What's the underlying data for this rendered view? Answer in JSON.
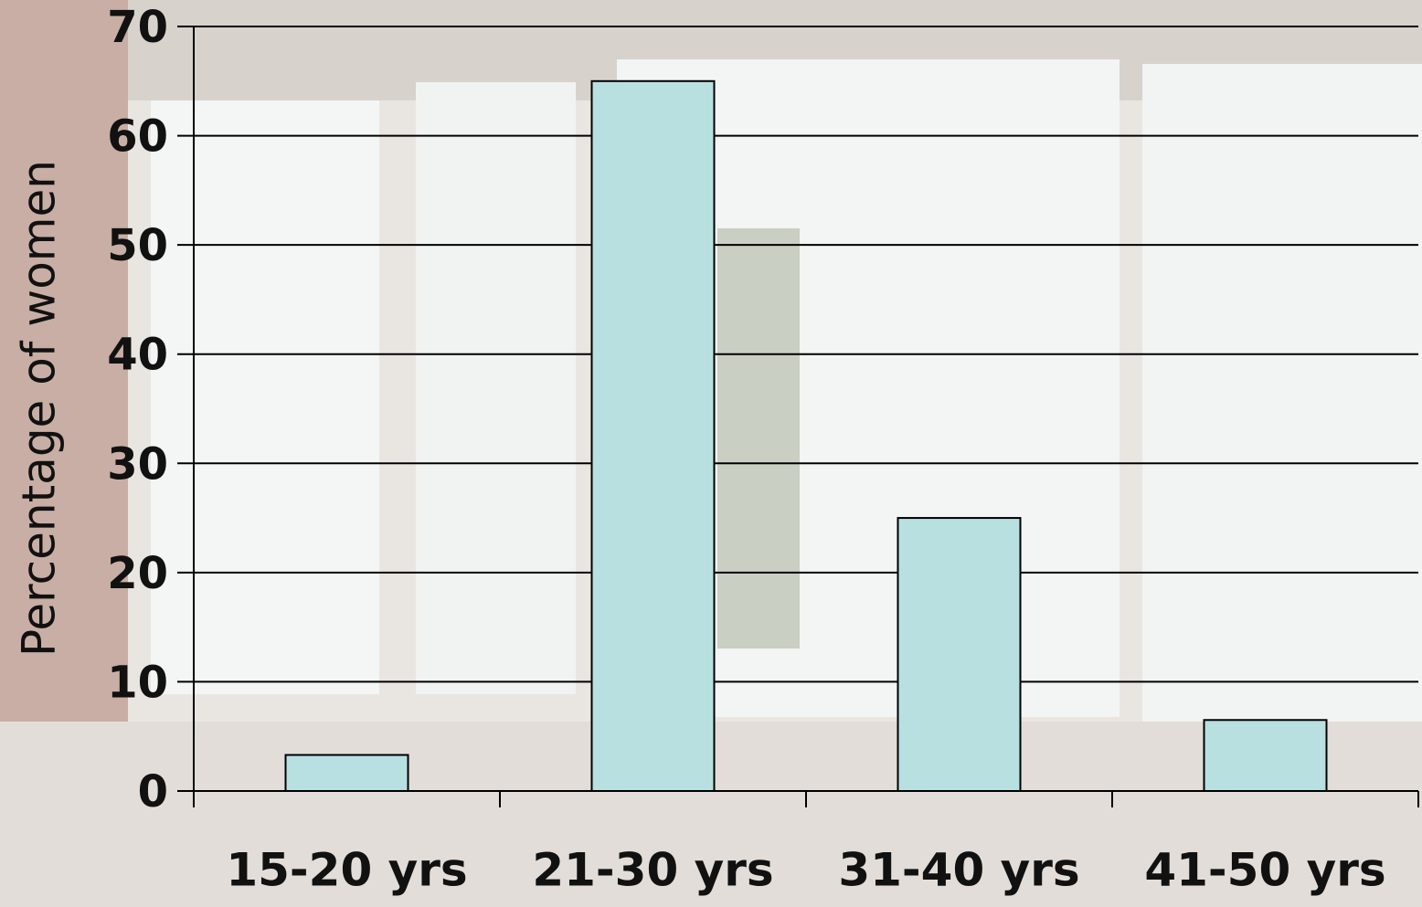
{
  "chart_data": {
    "type": "bar",
    "y_label": "Percentage of women",
    "categories": [
      "15-20 yrs",
      "21-30 yrs",
      "31-40 yrs",
      "41-50 yrs"
    ],
    "values": [
      3.3,
      65,
      25,
      6.5
    ],
    "color": "#b9e0e0",
    "ylim": [
      0,
      70
    ],
    "yticks": [
      0,
      10,
      20,
      30,
      40,
      50,
      60,
      70
    ],
    "grid": true
  }
}
